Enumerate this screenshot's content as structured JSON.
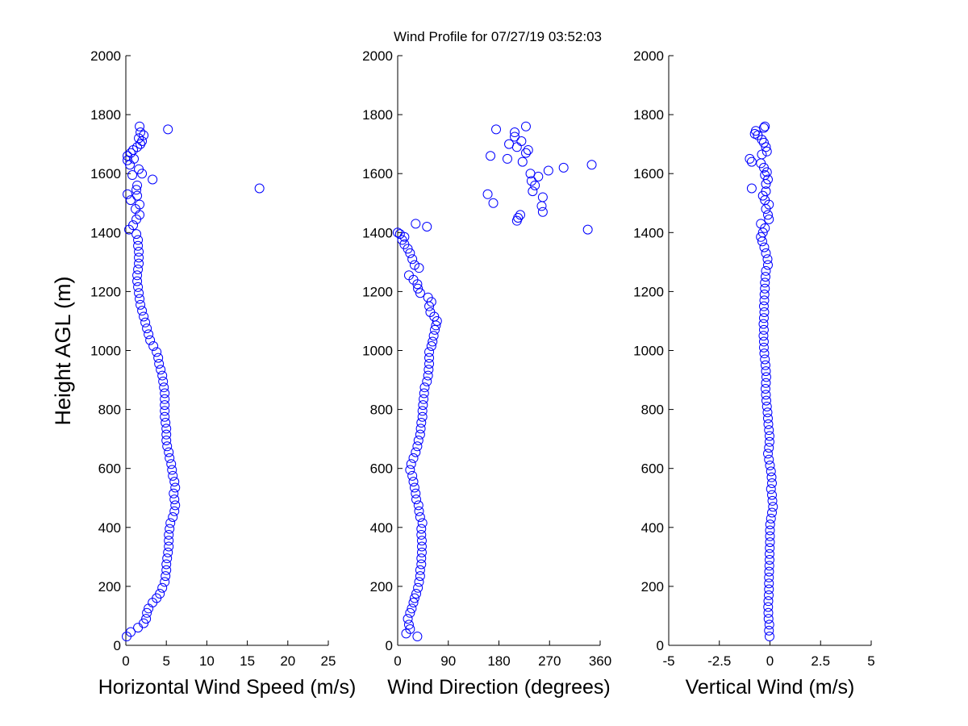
{
  "title": "Wind Profile for  07/27/19 03:52:03",
  "chart_data": [
    {
      "type": "scatter",
      "ylabel": "Height AGL (m)",
      "xlabel": "Horizontal Wind Speed (m/s)",
      "xlim": [
        0,
        25
      ],
      "ylim": [
        0,
        2000
      ],
      "xticks": [
        "0",
        "5",
        "10",
        "15",
        "20",
        "25"
      ],
      "yticks": [
        "0",
        "200",
        "400",
        "600",
        "800",
        "1000",
        "1200",
        "1400",
        "1600",
        "1800",
        "2000"
      ],
      "marker_color": "#0000ff",
      "points": [
        [
          0.1,
          30
        ],
        [
          0.6,
          45
        ],
        [
          1.5,
          60
        ],
        [
          2.2,
          75
        ],
        [
          2.5,
          90
        ],
        [
          2.6,
          110
        ],
        [
          2.8,
          125
        ],
        [
          3.3,
          145
        ],
        [
          3.8,
          160
        ],
        [
          4.2,
          175
        ],
        [
          4.5,
          195
        ],
        [
          4.8,
          215
        ],
        [
          4.9,
          235
        ],
        [
          5.0,
          255
        ],
        [
          5.0,
          275
        ],
        [
          5.1,
          295
        ],
        [
          5.2,
          315
        ],
        [
          5.3,
          335
        ],
        [
          5.3,
          355
        ],
        [
          5.3,
          375
        ],
        [
          5.4,
          395
        ],
        [
          5.5,
          415
        ],
        [
          5.8,
          435
        ],
        [
          6.0,
          455
        ],
        [
          6.1,
          475
        ],
        [
          6.0,
          495
        ],
        [
          5.9,
          515
        ],
        [
          6.1,
          535
        ],
        [
          6.0,
          555
        ],
        [
          5.8,
          575
        ],
        [
          5.7,
          595
        ],
        [
          5.6,
          615
        ],
        [
          5.4,
          635
        ],
        [
          5.3,
          655
        ],
        [
          5.1,
          675
        ],
        [
          5.0,
          695
        ],
        [
          5.0,
          715
        ],
        [
          5.0,
          735
        ],
        [
          4.9,
          755
        ],
        [
          4.8,
          775
        ],
        [
          4.8,
          795
        ],
        [
          4.8,
          815
        ],
        [
          4.8,
          835
        ],
        [
          4.8,
          855
        ],
        [
          4.7,
          875
        ],
        [
          4.6,
          895
        ],
        [
          4.5,
          915
        ],
        [
          4.3,
          935
        ],
        [
          4.1,
          955
        ],
        [
          4.0,
          975
        ],
        [
          3.8,
          995
        ],
        [
          3.4,
          1015
        ],
        [
          3.0,
          1035
        ],
        [
          2.8,
          1055
        ],
        [
          2.6,
          1075
        ],
        [
          2.4,
          1095
        ],
        [
          2.2,
          1115
        ],
        [
          2.0,
          1135
        ],
        [
          1.8,
          1155
        ],
        [
          1.7,
          1175
        ],
        [
          1.6,
          1195
        ],
        [
          1.5,
          1215
        ],
        [
          1.4,
          1235
        ],
        [
          1.4,
          1255
        ],
        [
          1.5,
          1275
        ],
        [
          1.6,
          1295
        ],
        [
          1.6,
          1315
        ],
        [
          1.6,
          1335
        ],
        [
          1.5,
          1355
        ],
        [
          1.5,
          1375
        ],
        [
          1.3,
          1395
        ],
        [
          0.4,
          1410
        ],
        [
          0.9,
          1425
        ],
        [
          1.3,
          1445
        ],
        [
          1.7,
          1460
        ],
        [
          1.2,
          1480
        ],
        [
          1.7,
          1495
        ],
        [
          0.6,
          1510
        ],
        [
          1.4,
          1525
        ],
        [
          0.2,
          1530
        ],
        [
          1.3,
          1545
        ],
        [
          16.5,
          1550
        ],
        [
          1.4,
          1560
        ],
        [
          3.3,
          1580
        ],
        [
          0.8,
          1595
        ],
        [
          2.0,
          1600
        ],
        [
          1.6,
          1615
        ],
        [
          0.5,
          1630
        ],
        [
          0.2,
          1645
        ],
        [
          1.0,
          1650
        ],
        [
          0.2,
          1660
        ],
        [
          0.6,
          1670
        ],
        [
          0.9,
          1680
        ],
        [
          1.4,
          1690
        ],
        [
          1.8,
          1700
        ],
        [
          2.0,
          1710
        ],
        [
          1.6,
          1720
        ],
        [
          2.2,
          1730
        ],
        [
          1.8,
          1740
        ],
        [
          5.2,
          1750
        ],
        [
          1.7,
          1760
        ]
      ]
    },
    {
      "type": "scatter",
      "xlabel": "Wind Direction (degrees)",
      "xlim": [
        0,
        360
      ],
      "ylim": [
        0,
        2000
      ],
      "xticks": [
        "0",
        "90",
        "180",
        "270",
        "360"
      ],
      "yticks": [
        "0",
        "200",
        "400",
        "600",
        "800",
        "1000",
        "1200",
        "1400",
        "1600",
        "1800",
        "2000"
      ],
      "marker_color": "#0000ff",
      "points": [
        [
          35,
          30
        ],
        [
          15,
          40
        ],
        [
          22,
          55
        ],
        [
          20,
          70
        ],
        [
          18,
          90
        ],
        [
          22,
          110
        ],
        [
          25,
          125
        ],
        [
          28,
          145
        ],
        [
          30,
          160
        ],
        [
          33,
          175
        ],
        [
          36,
          195
        ],
        [
          38,
          215
        ],
        [
          40,
          235
        ],
        [
          40,
          255
        ],
        [
          42,
          275
        ],
        [
          42,
          295
        ],
        [
          43,
          315
        ],
        [
          43,
          335
        ],
        [
          43,
          355
        ],
        [
          42,
          375
        ],
        [
          42,
          395
        ],
        [
          44,
          415
        ],
        [
          40,
          435
        ],
        [
          38,
          455
        ],
        [
          37,
          475
        ],
        [
          33,
          495
        ],
        [
          32,
          515
        ],
        [
          30,
          535
        ],
        [
          28,
          555
        ],
        [
          26,
          575
        ],
        [
          22,
          595
        ],
        [
          24,
          615
        ],
        [
          28,
          635
        ],
        [
          32,
          655
        ],
        [
          35,
          675
        ],
        [
          37,
          695
        ],
        [
          40,
          715
        ],
        [
          41,
          735
        ],
        [
          42,
          755
        ],
        [
          44,
          775
        ],
        [
          44,
          795
        ],
        [
          45,
          815
        ],
        [
          46,
          835
        ],
        [
          47,
          855
        ],
        [
          48,
          875
        ],
        [
          52,
          895
        ],
        [
          54,
          915
        ],
        [
          55,
          935
        ],
        [
          56,
          955
        ],
        [
          56,
          975
        ],
        [
          56,
          995
        ],
        [
          60,
          1015
        ],
        [
          62,
          1030
        ],
        [
          64,
          1050
        ],
        [
          66,
          1070
        ],
        [
          68,
          1085
        ],
        [
          70,
          1100
        ],
        [
          65,
          1115
        ],
        [
          58,
          1130
        ],
        [
          56,
          1150
        ],
        [
          60,
          1165
        ],
        [
          54,
          1180
        ],
        [
          40,
          1195
        ],
        [
          36,
          1210
        ],
        [
          35,
          1225
        ],
        [
          28,
          1240
        ],
        [
          20,
          1255
        ],
        [
          38,
          1280
        ],
        [
          30,
          1290
        ],
        [
          26,
          1310
        ],
        [
          22,
          1330
        ],
        [
          18,
          1345
        ],
        [
          12,
          1360
        ],
        [
          8,
          1375
        ],
        [
          12,
          1385
        ],
        [
          4,
          1395
        ],
        [
          0,
          1400
        ],
        [
          338,
          1410
        ],
        [
          52,
          1420
        ],
        [
          32,
          1430
        ],
        [
          212,
          1440
        ],
        [
          214,
          1450
        ],
        [
          218,
          1460
        ],
        [
          258,
          1470
        ],
        [
          256,
          1490
        ],
        [
          170,
          1500
        ],
        [
          258,
          1520
        ],
        [
          160,
          1530
        ],
        [
          240,
          1540
        ],
        [
          244,
          1560
        ],
        [
          238,
          1575
        ],
        [
          250,
          1590
        ],
        [
          236,
          1600
        ],
        [
          268,
          1610
        ],
        [
          295,
          1620
        ],
        [
          345,
          1630
        ],
        [
          222,
          1640
        ],
        [
          195,
          1650
        ],
        [
          165,
          1660
        ],
        [
          228,
          1670
        ],
        [
          232,
          1680
        ],
        [
          212,
          1690
        ],
        [
          198,
          1700
        ],
        [
          220,
          1710
        ],
        [
          208,
          1725
        ],
        [
          208,
          1740
        ],
        [
          175,
          1750
        ],
        [
          228,
          1760
        ]
      ]
    },
    {
      "type": "scatter",
      "xlabel": "Vertical Wind (m/s)",
      "xlim": [
        -5,
        5
      ],
      "ylim": [
        0,
        2000
      ],
      "xticks": [
        "-5",
        "-2.5",
        "0",
        "2.5",
        "5"
      ],
      "yticks": [
        "0",
        "200",
        "400",
        "600",
        "800",
        "1000",
        "1200",
        "1400",
        "1600",
        "1800",
        "2000"
      ],
      "marker_color": "#0000ff",
      "points": [
        [
          -0.02,
          30
        ],
        [
          -0.05,
          50
        ],
        [
          -0.03,
          70
        ],
        [
          -0.07,
          90
        ],
        [
          -0.08,
          110
        ],
        [
          -0.09,
          130
        ],
        [
          -0.08,
          150
        ],
        [
          -0.06,
          170
        ],
        [
          -0.05,
          190
        ],
        [
          -0.05,
          210
        ],
        [
          -0.05,
          230
        ],
        [
          -0.04,
          250
        ],
        [
          -0.03,
          270
        ],
        [
          -0.02,
          290
        ],
        [
          -0.02,
          310
        ],
        [
          -0.01,
          330
        ],
        [
          0.0,
          350
        ],
        [
          0.0,
          370
        ],
        [
          0.0,
          390
        ],
        [
          0.01,
          410
        ],
        [
          0.05,
          430
        ],
        [
          0.1,
          450
        ],
        [
          0.15,
          470
        ],
        [
          0.12,
          490
        ],
        [
          0.1,
          510
        ],
        [
          0.05,
          530
        ],
        [
          0.1,
          550
        ],
        [
          0.08,
          570
        ],
        [
          0.05,
          590
        ],
        [
          0.0,
          610
        ],
        [
          -0.05,
          630
        ],
        [
          -0.1,
          650
        ],
        [
          -0.05,
          670
        ],
        [
          -0.02,
          690
        ],
        [
          -0.02,
          710
        ],
        [
          -0.05,
          730
        ],
        [
          -0.08,
          750
        ],
        [
          -0.1,
          770
        ],
        [
          -0.12,
          790
        ],
        [
          -0.15,
          810
        ],
        [
          -0.18,
          830
        ],
        [
          -0.2,
          850
        ],
        [
          -0.22,
          870
        ],
        [
          -0.2,
          890
        ],
        [
          -0.18,
          910
        ],
        [
          -0.2,
          930
        ],
        [
          -0.22,
          950
        ],
        [
          -0.25,
          970
        ],
        [
          -0.28,
          990
        ],
        [
          -0.3,
          1010
        ],
        [
          -0.3,
          1030
        ],
        [
          -0.32,
          1050
        ],
        [
          -0.3,
          1070
        ],
        [
          -0.32,
          1090
        ],
        [
          -0.3,
          1110
        ],
        [
          -0.28,
          1130
        ],
        [
          -0.3,
          1150
        ],
        [
          -0.28,
          1170
        ],
        [
          -0.27,
          1190
        ],
        [
          -0.25,
          1210
        ],
        [
          -0.25,
          1230
        ],
        [
          -0.22,
          1250
        ],
        [
          -0.2,
          1270
        ],
        [
          -0.1,
          1290
        ],
        [
          -0.12,
          1310
        ],
        [
          -0.2,
          1330
        ],
        [
          -0.28,
          1350
        ],
        [
          -0.38,
          1370
        ],
        [
          -0.45,
          1385
        ],
        [
          -0.35,
          1400
        ],
        [
          -0.25,
          1415
        ],
        [
          -0.45,
          1430
        ],
        [
          -0.05,
          1445
        ],
        [
          -0.1,
          1460
        ],
        [
          -0.2,
          1480
        ],
        [
          -0.05,
          1495
        ],
        [
          -0.25,
          1510
        ],
        [
          -0.35,
          1525
        ],
        [
          -0.2,
          1540
        ],
        [
          -0.9,
          1550
        ],
        [
          -0.2,
          1565
        ],
        [
          -0.1,
          1580
        ],
        [
          -0.25,
          1595
        ],
        [
          -0.15,
          1605
        ],
        [
          -0.3,
          1620
        ],
        [
          -0.45,
          1635
        ],
        [
          -0.9,
          1640
        ],
        [
          -1.0,
          1650
        ],
        [
          -0.4,
          1665
        ],
        [
          -0.15,
          1675
        ],
        [
          -0.2,
          1690
        ],
        [
          -0.3,
          1705
        ],
        [
          -0.4,
          1715
        ],
        [
          -0.6,
          1730
        ],
        [
          -0.75,
          1735
        ],
        [
          -0.7,
          1745
        ],
        [
          -0.3,
          1755
        ],
        [
          -0.25,
          1760
        ]
      ]
    }
  ]
}
